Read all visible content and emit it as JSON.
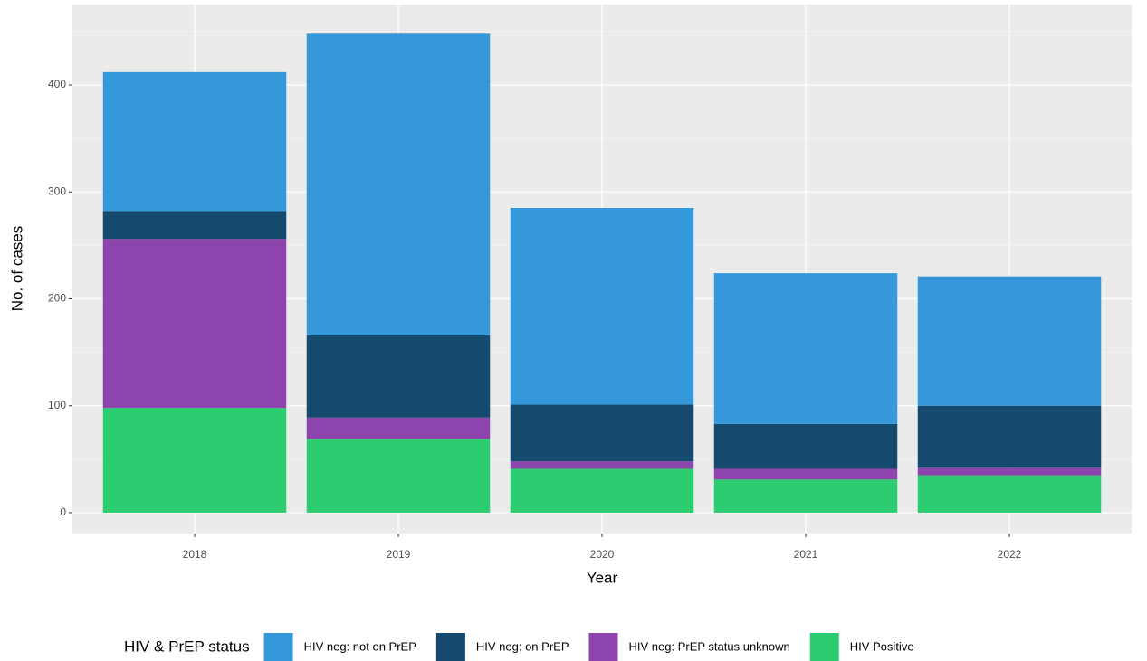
{
  "chart_data": {
    "type": "stacked-bar",
    "x_label": "Year",
    "y_label": "No. of cases",
    "legend_title": "HIV & PrEP status",
    "legend_position": "bottom",
    "grid": true,
    "categories": [
      "2018",
      "2019",
      "2020",
      "2021",
      "2022"
    ],
    "series": [
      {
        "name": "HIV neg: not on PrEP",
        "color": "#3498db",
        "values": [
          130,
          282,
          184,
          141,
          121
        ]
      },
      {
        "name": "HIV neg: on PrEP",
        "color": "#154a6e",
        "values": [
          26,
          77,
          53,
          42,
          58
        ]
      },
      {
        "name": "HIV neg: PrEP status unknown",
        "color": "#8e44ad",
        "values": [
          158,
          20,
          7,
          10,
          7
        ]
      },
      {
        "name": "HIV Positive",
        "color": "#2ecc71",
        "values": [
          98,
          69,
          41,
          31,
          35
        ]
      }
    ],
    "ylim": [
      -19.5,
      475.3
    ],
    "yticks": [
      0,
      100,
      200,
      300,
      400
    ]
  }
}
